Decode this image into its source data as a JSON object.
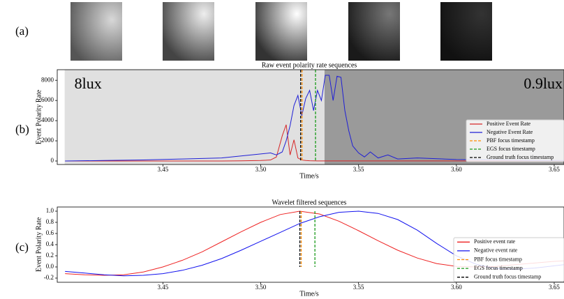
{
  "panel_labels": [
    "(a)",
    "(b)",
    "(c)"
  ],
  "chart_data": [
    {
      "type": "line",
      "title": "Raw event polarity rate sequences",
      "x_label": "Time/s",
      "y_label": "Event Polarity Rate",
      "x": [
        3.4,
        3.42,
        3.44,
        3.46,
        3.48,
        3.49,
        3.5,
        3.505,
        3.508,
        3.511,
        3.513,
        3.515,
        3.517,
        3.519,
        3.521,
        3.523,
        3.525,
        3.527,
        3.529,
        3.531,
        3.533,
        3.535,
        3.537,
        3.539,
        3.541,
        3.543,
        3.545,
        3.547,
        3.55,
        3.553,
        3.556,
        3.56,
        3.565,
        3.57,
        3.58,
        3.6,
        3.62,
        3.64,
        3.655
      ],
      "series": [
        {
          "name": "Positive Event Rate",
          "color": "#d62728",
          "values": [
            0,
            0,
            0,
            0,
            0,
            20,
            50,
            100,
            400,
            2500,
            3600,
            600,
            2100,
            300,
            100,
            50,
            30,
            20,
            10,
            10,
            10,
            10,
            10,
            10,
            10,
            10,
            10,
            10,
            10,
            10,
            10,
            10,
            10,
            10,
            10,
            10,
            10,
            10,
            10
          ]
        },
        {
          "name": "Negative Event Rate",
          "color": "#1f1fd6",
          "values": [
            0,
            50,
            100,
            200,
            300,
            500,
            700,
            800,
            600,
            900,
            2000,
            3500,
            5500,
            6500,
            4500,
            6200,
            7000,
            5000,
            7000,
            6000,
            8500,
            8500,
            6000,
            8400,
            8300,
            5000,
            3000,
            1500,
            800,
            400,
            900,
            300,
            600,
            200,
            300,
            150,
            100,
            50,
            50
          ]
        }
      ],
      "vlines": [
        {
          "name": "PBF focus timestamp",
          "color": "#ff8c00",
          "x": 3.5211
        },
        {
          "name": "EGS focus timestamp",
          "color": "#1a9a1a",
          "x": 3.528
        },
        {
          "name": "Ground truth focus timestamp",
          "color": "#000000",
          "x": 3.5204
        }
      ],
      "regions": [
        {
          "label": "8lux",
          "color": "#e0e0e0",
          "from": 3.3998,
          "to": 3.5326
        },
        {
          "label": "0.9lux",
          "color": "#9a9a9a",
          "from": 3.5326,
          "to": 3.655
        }
      ],
      "xlim": [
        3.396,
        3.655
      ],
      "ylim": [
        -345,
        9050
      ],
      "xticks": [
        3.45,
        {
          "value": 3.5,
          "label": "3.50"
        },
        3.55,
        {
          "value": 3.6,
          "label": "3.60"
        },
        3.65
      ],
      "yticks": [
        0,
        2000,
        4000,
        6000,
        8000
      ],
      "legend": "lower right"
    },
    {
      "type": "line",
      "title": "Wavelet filtered sequences",
      "x_label": "Time/s",
      "y_label": "Event Polarity Rate",
      "x": [
        3.4,
        3.41,
        3.42,
        3.43,
        3.44,
        3.45,
        3.46,
        3.47,
        3.48,
        3.49,
        3.5,
        3.51,
        3.52,
        3.53,
        3.54,
        3.55,
        3.56,
        3.57,
        3.58,
        3.59,
        3.6,
        3.61,
        3.62,
        3.63,
        3.64,
        3.65,
        3.655
      ],
      "series": [
        {
          "name": "Positive event rate",
          "color": "#ee2222",
          "values": [
            -0.12,
            -0.14,
            -0.15,
            -0.14,
            -0.09,
            0.0,
            0.12,
            0.27,
            0.45,
            0.63,
            0.8,
            0.94,
            1.0,
            0.95,
            0.82,
            0.65,
            0.47,
            0.3,
            0.16,
            0.06,
            0.01,
            0.0,
            0.01,
            0.04,
            0.07,
            0.1,
            0.11
          ]
        },
        {
          "name": "Negative event rate",
          "color": "#1111ee",
          "values": [
            -0.08,
            -0.11,
            -0.14,
            -0.16,
            -0.15,
            -0.12,
            -0.06,
            0.03,
            0.15,
            0.3,
            0.46,
            0.62,
            0.78,
            0.9,
            0.98,
            1.0,
            0.96,
            0.85,
            0.66,
            0.42,
            0.2,
            0.05,
            -0.03,
            -0.04,
            -0.02,
            0.02,
            0.04
          ]
        }
      ],
      "vlines": [
        {
          "name": "PBF focus timestamp",
          "color": "#ff8c00",
          "x": 3.5207
        },
        {
          "name": "EGS focus timestamp",
          "color": "#1a9a1a",
          "x": 3.5277
        },
        {
          "name": "Ground truth focus timestamp",
          "color": "#000000",
          "x": 3.52
        }
      ],
      "xlim": [
        3.396,
        3.655
      ],
      "ylim": [
        -0.275,
        1.075
      ],
      "xticks": [
        3.45,
        {
          "value": 3.5,
          "label": "3.50"
        },
        3.55,
        {
          "value": 3.6,
          "label": "3.60"
        },
        3.65
      ],
      "yticks": [
        -0.2,
        {
          "value": 0,
          "label": "0.0"
        },
        0.2,
        0.4,
        0.6,
        0.8,
        {
          "value": 1,
          "label": "1.0"
        }
      ],
      "legend": "lower right"
    }
  ]
}
